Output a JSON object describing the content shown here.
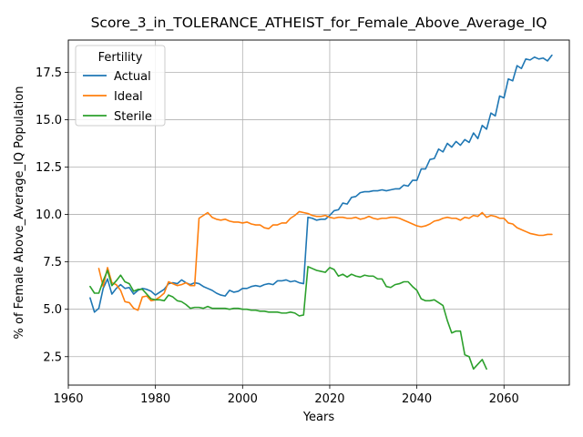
{
  "chart_data": {
    "type": "line",
    "title": "Score_3_in_TOLERANCE_ATHEIST_for_Female_Above_Average_IQ",
    "xlabel": "Years",
    "ylabel": "% of Female Above_Average_IQ Population",
    "xlim": [
      1960,
      2075
    ],
    "ylim": [
      1.0,
      19.2
    ],
    "xticks": [
      1960,
      1980,
      2000,
      2020,
      2040,
      2060
    ],
    "yticks": [
      2.5,
      5.0,
      7.5,
      10.0,
      12.5,
      15.0,
      17.5
    ],
    "grid": true,
    "legend": {
      "title": "Fertility",
      "position": "top-left"
    },
    "series": [
      {
        "name": "Actual",
        "color": "#1f77b4",
        "points": [
          [
            1965,
            5.6
          ],
          [
            1966,
            4.85
          ],
          [
            1967,
            5.05
          ],
          [
            1968,
            6.1
          ],
          [
            1969,
            6.6
          ],
          [
            1970,
            5.8
          ],
          [
            1971,
            6.1
          ],
          [
            1972,
            6.3
          ],
          [
            1973,
            6.1
          ],
          [
            1974,
            6.15
          ],
          [
            1975,
            5.8
          ],
          [
            1976,
            6.0
          ],
          [
            1977,
            6.1
          ],
          [
            1978,
            6.05
          ],
          [
            1979,
            5.95
          ],
          [
            1980,
            5.75
          ],
          [
            1981,
            5.9
          ],
          [
            1982,
            6.05
          ],
          [
            1983,
            6.35
          ],
          [
            1984,
            6.4
          ],
          [
            1985,
            6.35
          ],
          [
            1986,
            6.55
          ],
          [
            1987,
            6.4
          ],
          [
            1988,
            6.3
          ],
          [
            1989,
            6.4
          ],
          [
            1990,
            6.35
          ],
          [
            1991,
            6.2
          ],
          [
            1992,
            6.1
          ],
          [
            1993,
            6.0
          ],
          [
            1994,
            5.85
          ],
          [
            1995,
            5.75
          ],
          [
            1996,
            5.7
          ],
          [
            1997,
            6.0
          ],
          [
            1998,
            5.9
          ],
          [
            1999,
            5.95
          ],
          [
            2000,
            6.1
          ],
          [
            2001,
            6.1
          ],
          [
            2002,
            6.2
          ],
          [
            2003,
            6.25
          ],
          [
            2004,
            6.2
          ],
          [
            2005,
            6.3
          ],
          [
            2006,
            6.35
          ],
          [
            2007,
            6.3
          ],
          [
            2008,
            6.5
          ],
          [
            2009,
            6.5
          ],
          [
            2010,
            6.55
          ],
          [
            2011,
            6.45
          ],
          [
            2012,
            6.5
          ],
          [
            2013,
            6.4
          ],
          [
            2014,
            6.35
          ],
          [
            2015,
            9.85
          ],
          [
            2016,
            9.8
          ],
          [
            2017,
            9.7
          ],
          [
            2018,
            9.75
          ],
          [
            2019,
            9.75
          ],
          [
            2020,
            9.95
          ],
          [
            2021,
            10.2
          ],
          [
            2022,
            10.25
          ],
          [
            2023,
            10.6
          ],
          [
            2024,
            10.55
          ],
          [
            2025,
            10.9
          ],
          [
            2026,
            10.95
          ],
          [
            2027,
            11.15
          ],
          [
            2028,
            11.2
          ],
          [
            2029,
            11.2
          ],
          [
            2030,
            11.25
          ],
          [
            2031,
            11.25
          ],
          [
            2032,
            11.3
          ],
          [
            2033,
            11.25
          ],
          [
            2034,
            11.3
          ],
          [
            2035,
            11.35
          ],
          [
            2036,
            11.35
          ],
          [
            2037,
            11.55
          ],
          [
            2038,
            11.5
          ],
          [
            2039,
            11.8
          ],
          [
            2040,
            11.8
          ],
          [
            2041,
            12.4
          ],
          [
            2042,
            12.4
          ],
          [
            2043,
            12.9
          ],
          [
            2044,
            12.95
          ],
          [
            2045,
            13.45
          ],
          [
            2046,
            13.3
          ],
          [
            2047,
            13.75
          ],
          [
            2048,
            13.55
          ],
          [
            2049,
            13.85
          ],
          [
            2050,
            13.65
          ],
          [
            2051,
            13.95
          ],
          [
            2052,
            13.8
          ],
          [
            2053,
            14.3
          ],
          [
            2054,
            14.0
          ],
          [
            2055,
            14.7
          ],
          [
            2056,
            14.5
          ],
          [
            2057,
            15.35
          ],
          [
            2058,
            15.2
          ],
          [
            2059,
            16.25
          ],
          [
            2060,
            16.15
          ],
          [
            2061,
            17.15
          ],
          [
            2062,
            17.05
          ],
          [
            2063,
            17.85
          ],
          [
            2064,
            17.7
          ],
          [
            2065,
            18.2
          ],
          [
            2066,
            18.15
          ],
          [
            2067,
            18.3
          ],
          [
            2068,
            18.2
          ],
          [
            2069,
            18.25
          ],
          [
            2070,
            18.1
          ],
          [
            2071,
            18.4
          ]
        ]
      },
      {
        "name": "Ideal",
        "color": "#ff7f0e",
        "points": [
          [
            1967,
            7.15
          ],
          [
            1968,
            6.2
          ],
          [
            1969,
            7.2
          ],
          [
            1970,
            6.4
          ],
          [
            1971,
            6.3
          ],
          [
            1972,
            6.0
          ],
          [
            1973,
            5.4
          ],
          [
            1974,
            5.35
          ],
          [
            1975,
            5.05
          ],
          [
            1976,
            4.95
          ],
          [
            1977,
            5.65
          ],
          [
            1978,
            5.7
          ],
          [
            1979,
            5.45
          ],
          [
            1980,
            5.5
          ],
          [
            1981,
            5.65
          ],
          [
            1982,
            5.85
          ],
          [
            1983,
            6.45
          ],
          [
            1984,
            6.35
          ],
          [
            1985,
            6.25
          ],
          [
            1986,
            6.3
          ],
          [
            1987,
            6.4
          ],
          [
            1988,
            6.25
          ],
          [
            1989,
            6.25
          ],
          [
            1990,
            9.8
          ],
          [
            1991,
            9.95
          ],
          [
            1992,
            10.1
          ],
          [
            1993,
            9.85
          ],
          [
            1994,
            9.75
          ],
          [
            1995,
            9.7
          ],
          [
            1996,
            9.75
          ],
          [
            1997,
            9.65
          ],
          [
            1998,
            9.6
          ],
          [
            1999,
            9.6
          ],
          [
            2000,
            9.55
          ],
          [
            2001,
            9.6
          ],
          [
            2002,
            9.5
          ],
          [
            2003,
            9.45
          ],
          [
            2004,
            9.45
          ],
          [
            2005,
            9.3
          ],
          [
            2006,
            9.25
          ],
          [
            2007,
            9.45
          ],
          [
            2008,
            9.45
          ],
          [
            2009,
            9.55
          ],
          [
            2010,
            9.55
          ],
          [
            2011,
            9.8
          ],
          [
            2012,
            9.95
          ],
          [
            2013,
            10.15
          ],
          [
            2014,
            10.1
          ],
          [
            2015,
            10.05
          ],
          [
            2016,
            9.95
          ],
          [
            2017,
            9.9
          ],
          [
            2018,
            9.9
          ],
          [
            2019,
            9.95
          ],
          [
            2020,
            9.85
          ],
          [
            2021,
            9.8
          ],
          [
            2022,
            9.85
          ],
          [
            2023,
            9.85
          ],
          [
            2024,
            9.8
          ],
          [
            2025,
            9.8
          ],
          [
            2026,
            9.85
          ],
          [
            2027,
            9.75
          ],
          [
            2028,
            9.8
          ],
          [
            2029,
            9.9
          ],
          [
            2030,
            9.8
          ],
          [
            2031,
            9.75
          ],
          [
            2032,
            9.8
          ],
          [
            2033,
            9.8
          ],
          [
            2034,
            9.85
          ],
          [
            2035,
            9.85
          ],
          [
            2036,
            9.8
          ],
          [
            2037,
            9.7
          ],
          [
            2038,
            9.6
          ],
          [
            2039,
            9.5
          ],
          [
            2040,
            9.4
          ],
          [
            2041,
            9.35
          ],
          [
            2042,
            9.4
          ],
          [
            2043,
            9.5
          ],
          [
            2044,
            9.65
          ],
          [
            2045,
            9.7
          ],
          [
            2046,
            9.8
          ],
          [
            2047,
            9.85
          ],
          [
            2048,
            9.8
          ],
          [
            2049,
            9.8
          ],
          [
            2050,
            9.7
          ],
          [
            2051,
            9.85
          ],
          [
            2052,
            9.8
          ],
          [
            2053,
            9.95
          ],
          [
            2054,
            9.9
          ],
          [
            2055,
            10.1
          ],
          [
            2056,
            9.85
          ],
          [
            2057,
            9.95
          ],
          [
            2058,
            9.9
          ],
          [
            2059,
            9.8
          ],
          [
            2060,
            9.8
          ],
          [
            2061,
            9.55
          ],
          [
            2062,
            9.5
          ],
          [
            2063,
            9.3
          ],
          [
            2064,
            9.2
          ],
          [
            2065,
            9.1
          ],
          [
            2066,
            9.0
          ],
          [
            2067,
            8.95
          ],
          [
            2068,
            8.9
          ],
          [
            2069,
            8.9
          ],
          [
            2070,
            8.95
          ],
          [
            2071,
            8.95
          ]
        ]
      },
      {
        "name": "Sterile",
        "color": "#2ca02c",
        "points": [
          [
            1965,
            6.2
          ],
          [
            1966,
            5.85
          ],
          [
            1967,
            5.85
          ],
          [
            1968,
            6.5
          ],
          [
            1969,
            7.05
          ],
          [
            1970,
            6.25
          ],
          [
            1971,
            6.5
          ],
          [
            1972,
            6.8
          ],
          [
            1973,
            6.45
          ],
          [
            1974,
            6.35
          ],
          [
            1975,
            5.95
          ],
          [
            1976,
            6.05
          ],
          [
            1977,
            6.05
          ],
          [
            1978,
            5.8
          ],
          [
            1979,
            5.55
          ],
          [
            1980,
            5.5
          ],
          [
            1981,
            5.5
          ],
          [
            1982,
            5.45
          ],
          [
            1983,
            5.75
          ],
          [
            1984,
            5.65
          ],
          [
            1985,
            5.45
          ],
          [
            1986,
            5.4
          ],
          [
            1987,
            5.25
          ],
          [
            1988,
            5.05
          ],
          [
            1989,
            5.1
          ],
          [
            1990,
            5.1
          ],
          [
            1991,
            5.05
          ],
          [
            1992,
            5.15
          ],
          [
            1993,
            5.05
          ],
          [
            1994,
            5.05
          ],
          [
            1995,
            5.05
          ],
          [
            1996,
            5.05
          ],
          [
            1997,
            5.0
          ],
          [
            1998,
            5.05
          ],
          [
            1999,
            5.05
          ],
          [
            2000,
            5.0
          ],
          [
            2001,
            5.0
          ],
          [
            2002,
            4.95
          ],
          [
            2003,
            4.95
          ],
          [
            2004,
            4.9
          ],
          [
            2005,
            4.9
          ],
          [
            2006,
            4.85
          ],
          [
            2007,
            4.85
          ],
          [
            2008,
            4.85
          ],
          [
            2009,
            4.8
          ],
          [
            2010,
            4.8
          ],
          [
            2011,
            4.85
          ],
          [
            2012,
            4.8
          ],
          [
            2013,
            4.65
          ],
          [
            2014,
            4.7
          ],
          [
            2015,
            7.25
          ],
          [
            2016,
            7.15
          ],
          [
            2017,
            7.05
          ],
          [
            2018,
            7.0
          ],
          [
            2019,
            6.95
          ],
          [
            2020,
            7.2
          ],
          [
            2021,
            7.1
          ],
          [
            2022,
            6.75
          ],
          [
            2023,
            6.85
          ],
          [
            2024,
            6.7
          ],
          [
            2025,
            6.85
          ],
          [
            2026,
            6.75
          ],
          [
            2027,
            6.7
          ],
          [
            2028,
            6.8
          ],
          [
            2029,
            6.75
          ],
          [
            2030,
            6.75
          ],
          [
            2031,
            6.6
          ],
          [
            2032,
            6.6
          ],
          [
            2033,
            6.2
          ],
          [
            2034,
            6.15
          ],
          [
            2035,
            6.3
          ],
          [
            2036,
            6.35
          ],
          [
            2037,
            6.45
          ],
          [
            2038,
            6.45
          ],
          [
            2039,
            6.2
          ],
          [
            2040,
            6.0
          ],
          [
            2041,
            5.55
          ],
          [
            2042,
            5.45
          ],
          [
            2043,
            5.45
          ],
          [
            2044,
            5.5
          ],
          [
            2045,
            5.35
          ],
          [
            2046,
            5.2
          ],
          [
            2047,
            4.4
          ],
          [
            2048,
            3.75
          ],
          [
            2049,
            3.85
          ],
          [
            2050,
            3.85
          ],
          [
            2051,
            2.6
          ],
          [
            2052,
            2.5
          ],
          [
            2053,
            1.85
          ],
          [
            2054,
            2.1
          ],
          [
            2055,
            2.35
          ],
          [
            2056,
            1.85
          ]
        ]
      }
    ]
  }
}
